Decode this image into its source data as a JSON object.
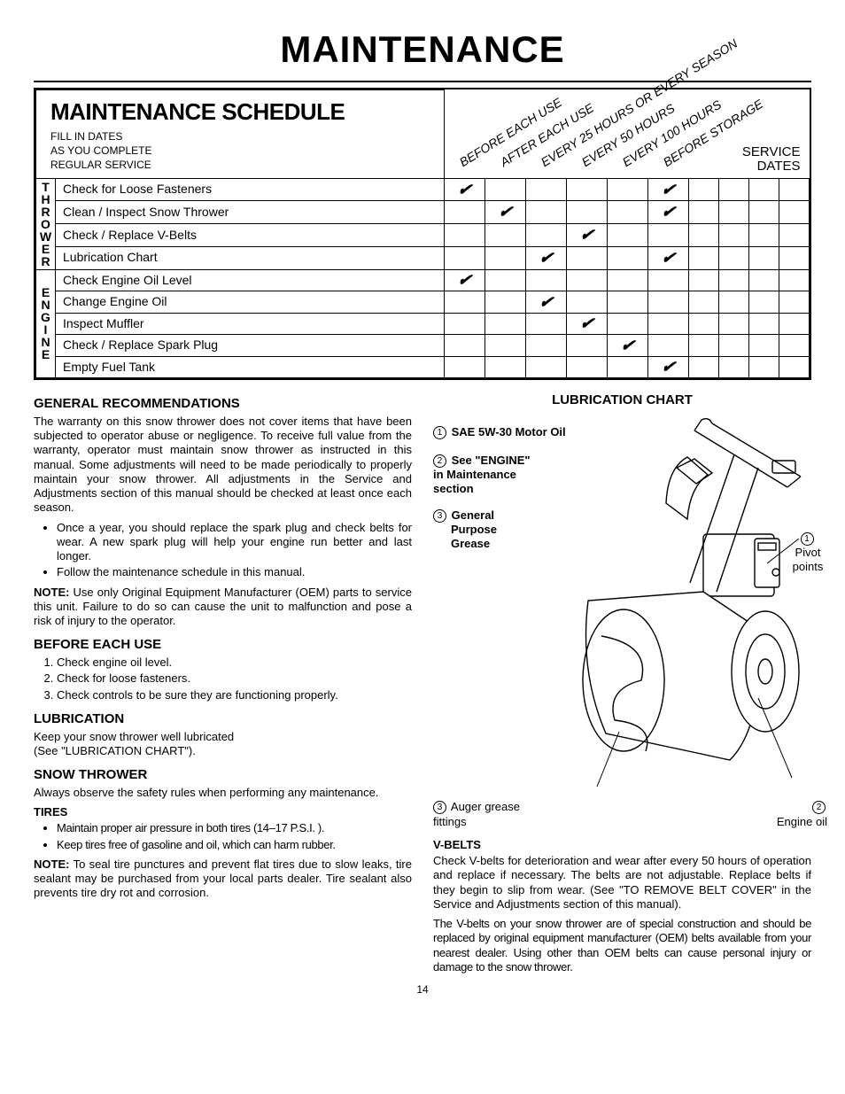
{
  "title": "MAINTENANCE",
  "schedule": {
    "heading": "MAINTENANCE SCHEDULE",
    "sub1": "FILL IN DATES",
    "sub2": "AS YOU COMPLETE",
    "sub3": "REGULAR SERVICE",
    "service_dates": "SERVICE\nDATES",
    "intervals": [
      "BEFORE EACH USE",
      "AFTER EACH USE",
      "EVERY 25 HOURS OR EVERY SEASON",
      "EVERY 50 HOURS",
      "EVERY 100 HOURS",
      "BEFORE STORAGE"
    ],
    "groups": [
      {
        "label": "THROWER",
        "rows": [
          {
            "task": "Check for Loose Fasteners",
            "checks": [
              true,
              false,
              false,
              false,
              false,
              true
            ]
          },
          {
            "task": "Clean / Inspect Snow Thrower",
            "checks": [
              false,
              true,
              false,
              false,
              false,
              true
            ]
          },
          {
            "task": "Check / Replace V-Belts",
            "checks": [
              false,
              false,
              false,
              true,
              false,
              false
            ]
          },
          {
            "task": "Lubrication Chart",
            "checks": [
              false,
              false,
              true,
              false,
              false,
              true
            ]
          }
        ]
      },
      {
        "label": "ENGINE",
        "rows": [
          {
            "task": "Check Engine Oil Level",
            "checks": [
              true,
              false,
              false,
              false,
              false,
              false
            ]
          },
          {
            "task": "Change Engine Oil",
            "checks": [
              false,
              false,
              true,
              false,
              false,
              false
            ]
          },
          {
            "task": "Inspect Muffler",
            "checks": [
              false,
              false,
              false,
              true,
              false,
              false
            ]
          },
          {
            "task": "Check / Replace Spark Plug",
            "checks": [
              false,
              false,
              false,
              false,
              true,
              false
            ]
          },
          {
            "task": "Empty Fuel Tank",
            "checks": [
              false,
              false,
              false,
              false,
              false,
              true
            ]
          }
        ]
      }
    ],
    "date_cols": 4
  },
  "left": {
    "h_general": "GENERAL RECOMMENDATIONS",
    "p_general": "The warranty on this snow thrower does not cover items that have been subjected to operator abuse or negligence. To receive full value from the warranty, operator must maintain snow thrower as instructed in this manual.  Some adjustments will need to be made periodically to properly maintain your snow thrower.  All adjustments in the Service and Adjustments section of this manual should be checked at least once each season.",
    "bullets_general": [
      "Once a year, you should replace the spark plug and check belts for wear.  A new spark plug will help your engine run better and last longer.",
      "Follow the maintenance schedule in this manual."
    ],
    "note_general": "Use only Original Equipment Manufacturer (OEM) parts to service this unit.  Failure to do so can cause the unit to malfunction and pose a risk of injury to the operator.",
    "h_before": "BEFORE EACH USE",
    "ol_before": [
      "Check engine oil level.",
      "Check for loose fasteners.",
      "Check controls to be sure they are functioning properly."
    ],
    "h_lub": "LUBRICATION",
    "p_lub1": "Keep your snow thrower well lubricated",
    "p_lub2": "(See \"LUBRICATION CHART\").",
    "h_snow": "SNOW THROWER",
    "p_snow": "Always observe the safety rules when performing any maintenance.",
    "h_tires": "TIRES",
    "bullets_tires": [
      "Maintain proper air pressure in both tires (14–17 P.S.I. ).",
      "Keep tires free of gasoline and oil, which can harm rubber."
    ],
    "note_tires": "To seal tire punctures and prevent flat tires due to slow leaks, tire sealant may be purchased from your local parts dealer. Tire sealant also prevents tire dry rot and corrosion."
  },
  "right": {
    "h_chart": "LUBRICATION CHART",
    "item1": "SAE 5W-30 Motor Oil",
    "item2a": "See \"ENGINE\"",
    "item2b": "in Maintenance",
    "item2c": "section",
    "item3a": "General",
    "item3b": "Purpose",
    "item3c": "Grease",
    "pivot": "Pivot points",
    "auger": "Auger grease fittings",
    "engoil": "Engine oil",
    "h_vbelts": "V-BELTS",
    "p_v1": "Check V-belts for deterioration and wear after every 50 hours of operation and replace if necessary. The belts are not adjustable. Replace belts if they begin to slip from wear. (See \"TO REMOVE BELT COVER\" in the Service and Adjustments section of this manual).",
    "p_v2": "The V-belts on your snow thrower are of special construction and should be replaced by original equipment manufacturer (OEM) belts available from your nearest dealer. Using other than OEM belts can cause personal injury or damage to the snow thrower."
  },
  "note_label": "NOTE:",
  "page_number": "14"
}
